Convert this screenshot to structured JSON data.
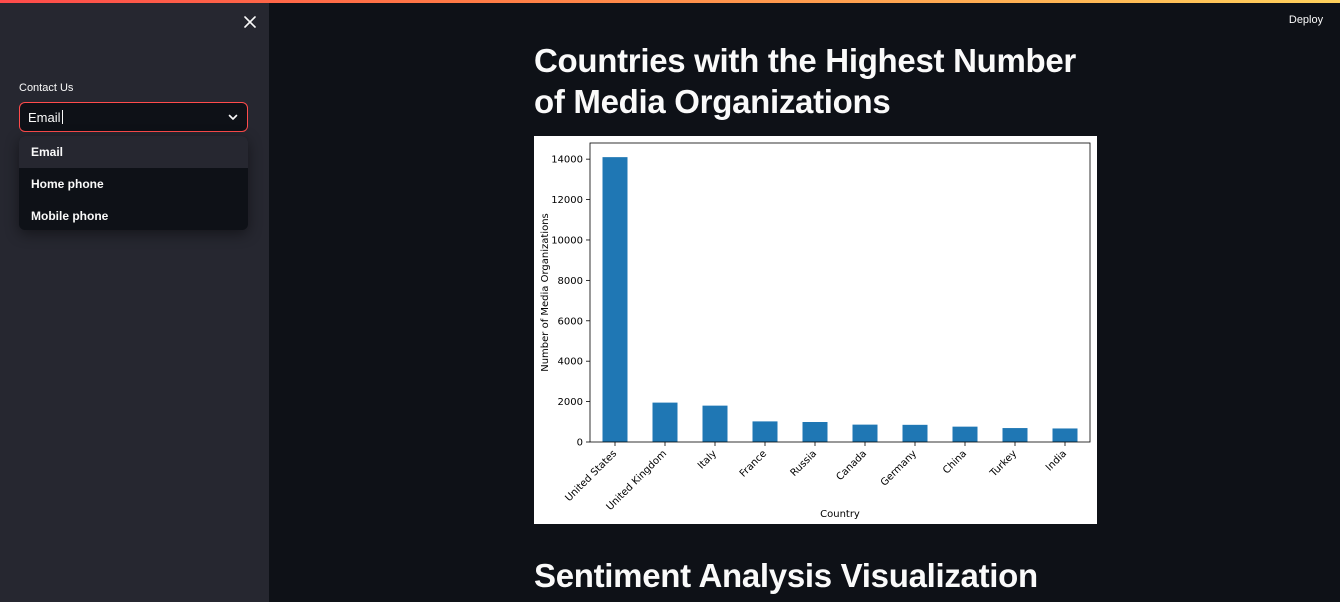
{
  "sidebar": {
    "close_icon": "close-icon",
    "contact_label": "Contact Us",
    "select": {
      "value": "Email",
      "options": [
        "Email",
        "Home phone",
        "Mobile phone"
      ],
      "accent_color": "#ff4b4b"
    }
  },
  "header": {
    "deploy_label": "Deploy"
  },
  "main": {
    "title": "Countries with the Highest Number of Media Organizations",
    "section2_title": "Sentiment Analysis Visualization"
  },
  "chart_data": {
    "type": "bar",
    "categories": [
      "United States",
      "United Kingdom",
      "Italy",
      "France",
      "Russia",
      "Canada",
      "Germany",
      "China",
      "Turkey",
      "India"
    ],
    "values": [
      14100,
      1950,
      1800,
      1020,
      990,
      860,
      850,
      760,
      690,
      670
    ],
    "xlabel": "Country",
    "ylabel": "Number of Media Organizations",
    "yticks": [
      0,
      2000,
      4000,
      6000,
      8000,
      10000,
      12000,
      14000
    ],
    "ylim": [
      0,
      14800
    ],
    "bar_color": "#1f77b4",
    "grid": false
  }
}
